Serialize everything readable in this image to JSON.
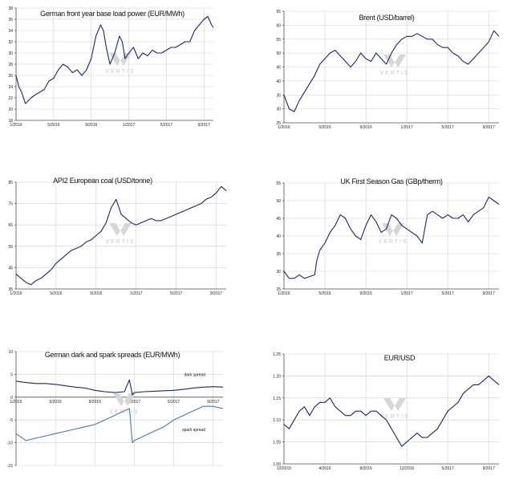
{
  "watermark": "VERTIS",
  "chart_data": [
    {
      "id": "c1",
      "type": "line",
      "title": "German front year base load power (EUR/MWh)",
      "ylim": [
        18,
        38
      ],
      "yticks": [
        18,
        20,
        22,
        24,
        26,
        28,
        30,
        32,
        34,
        36,
        38
      ],
      "xlim": [
        0,
        21
      ],
      "xticks": [
        {
          "x": 0,
          "label": "1/2016"
        },
        {
          "x": 4,
          "label": "5/2016"
        },
        {
          "x": 8,
          "label": "9/2016"
        },
        {
          "x": 12,
          "label": "1/2017"
        },
        {
          "x": 16,
          "label": "5/2017"
        },
        {
          "x": 20,
          "label": "9/2017"
        }
      ],
      "grid": true,
      "color": "#1b2a5c",
      "series": [
        {
          "x": [
            0,
            0.3,
            0.6,
            1,
            1.3,
            1.6,
            2,
            2.5,
            3,
            3.5,
            4,
            4.5,
            5,
            5.5,
            6,
            6.5,
            7,
            7.5,
            8,
            8.5,
            9,
            9.3,
            9.6,
            10,
            10.5,
            11,
            11.3,
            11.6,
            12,
            12.5,
            13,
            13.5,
            14,
            14.5,
            15,
            15.5,
            16,
            16.5,
            17,
            17.5,
            18,
            18.5,
            19,
            19.5,
            20,
            20.4,
            20.8,
            21
          ],
          "y": [
            26,
            24,
            23,
            21,
            21.5,
            22,
            22.5,
            23,
            23.5,
            25,
            25.5,
            27,
            28,
            27.5,
            26.5,
            27,
            26,
            27,
            29,
            33,
            35,
            34,
            31,
            28,
            30,
            33,
            32,
            29,
            30,
            31,
            29,
            30,
            29.5,
            30.5,
            30,
            30,
            30.5,
            31,
            31,
            31.5,
            32,
            32,
            34,
            35,
            36,
            36.5,
            35,
            34.5
          ]
        }
      ]
    },
    {
      "id": "c2",
      "type": "line",
      "title": "Brent (USD/barrel)",
      "ylim": [
        25,
        65
      ],
      "yticks": [
        25,
        30,
        35,
        40,
        45,
        50,
        55,
        60,
        65
      ],
      "xlim": [
        0,
        21
      ],
      "xticks": [
        {
          "x": 0,
          "label": "1/2016"
        },
        {
          "x": 4,
          "label": "5/2016"
        },
        {
          "x": 8,
          "label": "9/2016"
        },
        {
          "x": 12,
          "label": "1/2017"
        },
        {
          "x": 16,
          "label": "5/2017"
        },
        {
          "x": 20,
          "label": "9/2017"
        }
      ],
      "grid": true,
      "color": "#1b2a5c",
      "series": [
        {
          "x": [
            0,
            0.5,
            1,
            1.5,
            2,
            2.5,
            3,
            3.5,
            4,
            4.5,
            5,
            5.5,
            6,
            6.5,
            7,
            7.5,
            8,
            8.5,
            9,
            9.5,
            10,
            10.5,
            11,
            11.5,
            12,
            12.5,
            13,
            13.5,
            14,
            14.5,
            15,
            15.5,
            16,
            16.5,
            17,
            17.5,
            18,
            18.5,
            19,
            19.5,
            20,
            20.5,
            21
          ],
          "y": [
            35,
            30,
            29,
            33,
            36,
            39,
            42,
            46,
            48,
            50,
            51,
            49,
            47,
            45,
            47,
            50,
            48,
            47,
            50,
            48,
            46,
            50,
            53,
            55,
            56,
            56,
            57,
            56,
            55,
            55,
            53,
            52,
            52,
            50,
            49,
            47,
            46,
            48,
            50,
            52,
            54,
            58,
            56
          ]
        }
      ]
    },
    {
      "id": "c3",
      "type": "line",
      "title": "API2 European coal (USD/tonne)",
      "ylim": [
        35,
        85
      ],
      "yticks": [
        35,
        45,
        55,
        65,
        75,
        85
      ],
      "xlim": [
        0,
        21
      ],
      "xticks": [
        {
          "x": 0,
          "label": "1/2016"
        },
        {
          "x": 4,
          "label": "5/2016"
        },
        {
          "x": 8,
          "label": "9/2016"
        },
        {
          "x": 12,
          "label": "1/2017"
        },
        {
          "x": 16,
          "label": "5/2017"
        },
        {
          "x": 20,
          "label": "9/2017"
        }
      ],
      "grid": true,
      "color": "#1b2a5c",
      "series": [
        {
          "x": [
            0,
            0.5,
            1,
            1.5,
            2,
            2.5,
            3,
            3.5,
            4,
            4.5,
            5,
            5.5,
            6,
            6.5,
            7,
            7.5,
            8,
            8.5,
            9,
            9.5,
            10,
            10.5,
            11,
            11.5,
            12,
            12.5,
            13,
            13.5,
            14,
            14.5,
            15,
            15.5,
            16,
            16.5,
            17,
            17.5,
            18,
            18.5,
            19,
            19.5,
            20,
            20.5,
            21
          ],
          "y": [
            42,
            40,
            38,
            37,
            39,
            40,
            42,
            44,
            47,
            49,
            51,
            53,
            54,
            55,
            57,
            58,
            60,
            62,
            66,
            73,
            77,
            70,
            68,
            66,
            65,
            66,
            67,
            68,
            67,
            67,
            68,
            69,
            70,
            71,
            72,
            73,
            74,
            75,
            77,
            78,
            80,
            83,
            81
          ]
        }
      ]
    },
    {
      "id": "c4",
      "type": "line",
      "title": "UK First Season Gas (GBp/therm)",
      "ylim": [
        25,
        55
      ],
      "yticks": [
        25,
        30,
        35,
        40,
        45,
        50,
        55
      ],
      "xlim": [
        0,
        21
      ],
      "xticks": [
        {
          "x": 0,
          "label": "1/2016"
        },
        {
          "x": 4,
          "label": "5/2016"
        },
        {
          "x": 8,
          "label": "9/2016"
        },
        {
          "x": 12,
          "label": "1/2017"
        },
        {
          "x": 16,
          "label": "5/2017"
        },
        {
          "x": 20,
          "label": "9/2017"
        }
      ],
      "grid": true,
      "color": "#1b2a5c",
      "series": [
        {
          "x": [
            0,
            0.5,
            1,
            1.5,
            2,
            2.5,
            3,
            3.2,
            3.5,
            4,
            4.5,
            5,
            5.5,
            6,
            6.5,
            7,
            7.5,
            8,
            8.5,
            9,
            9.5,
            10,
            10.5,
            11,
            11.5,
            12,
            12.5,
            13,
            13.5,
            14,
            14.5,
            15,
            15.5,
            16,
            16.5,
            17,
            17.5,
            18,
            18.5,
            19,
            19.5,
            20,
            20.5,
            21
          ],
          "y": [
            30,
            28,
            28,
            29,
            28,
            28.5,
            29,
            33,
            36,
            38,
            41,
            43,
            46,
            45,
            42,
            40,
            39,
            43,
            46,
            44,
            41,
            42,
            46,
            45,
            43,
            42,
            41,
            40,
            38,
            46,
            47,
            46,
            45,
            46,
            45,
            45,
            46,
            44,
            46,
            47,
            48,
            51,
            50,
            49
          ]
        }
      ]
    },
    {
      "id": "c5",
      "type": "line",
      "title": "German dark and spark spreads (EUR/MWh)",
      "ylim": [
        -15,
        10
      ],
      "yticks": [
        -15,
        -10,
        -5,
        0,
        5,
        10
      ],
      "xlim": [
        0,
        21
      ],
      "xticks": [
        {
          "x": 0,
          "label": "1/2016"
        },
        {
          "x": 4,
          "label": "5/2016"
        },
        {
          "x": 8,
          "label": "9/2016"
        },
        {
          "x": 12,
          "label": "1/2017"
        },
        {
          "x": 16,
          "label": "5/2017"
        },
        {
          "x": 20,
          "label": "9/2017"
        }
      ],
      "xaxis_at": 0,
      "grid": true,
      "series": [
        {
          "name": "dark spread",
          "color": "#1b2a5c",
          "x": [
            0,
            1,
            2,
            3,
            4,
            5,
            6,
            7,
            8,
            9,
            10,
            11,
            11.5,
            11.8,
            12,
            13,
            14,
            15,
            16,
            17,
            18,
            19,
            20,
            21
          ],
          "y": [
            3.5,
            3.2,
            3,
            3,
            2.8,
            2.5,
            2.2,
            2,
            1.5,
            1.2,
            1,
            1.2,
            3.8,
            0.5,
            1,
            1.2,
            1.3,
            1.4,
            1.5,
            1.7,
            2,
            2.2,
            2.3,
            2.2
          ]
        },
        {
          "name": "spark spread",
          "color": "#4a79a8",
          "x": [
            0,
            1,
            2,
            3,
            4,
            5,
            6,
            7,
            8,
            9,
            10,
            11,
            11.5,
            11.8,
            12,
            13,
            14,
            15,
            16,
            17,
            18,
            19,
            20,
            21
          ],
          "y": [
            -8,
            -9.5,
            -9,
            -8.5,
            -8,
            -7.5,
            -7,
            -6.5,
            -6,
            -5,
            -4,
            -3,
            -2.5,
            -10,
            -9.5,
            -8.5,
            -7.5,
            -6.5,
            -5,
            -4,
            -3,
            -2,
            -2,
            -2.5
          ]
        }
      ]
    },
    {
      "id": "c6",
      "type": "line",
      "title": "EUR/USD",
      "ylim": [
        1.0,
        1.25
      ],
      "yticks": [
        1.0,
        1.05,
        1.1,
        1.15,
        1.2,
        1.25
      ],
      "ytick_labels": [
        "1.00",
        "1.05",
        "1.10",
        "1.15",
        "1.20",
        "1.25"
      ],
      "xlim": [
        0,
        21
      ],
      "xticks": [
        {
          "x": 0,
          "label": "12/2015"
        },
        {
          "x": 4,
          "label": "4/2016"
        },
        {
          "x": 8,
          "label": "8/2016"
        },
        {
          "x": 12,
          "label": "12/2016"
        },
        {
          "x": 16,
          "label": "5/2017"
        },
        {
          "x": 20,
          "label": "9/2017"
        }
      ],
      "grid": true,
      "color": "#1b2a5c",
      "series": [
        {
          "x": [
            0,
            0.5,
            1,
            1.5,
            2,
            2.5,
            3,
            3.5,
            4,
            4.5,
            5,
            5.5,
            6,
            6.5,
            7,
            7.5,
            8,
            8.5,
            9,
            9.5,
            10,
            10.5,
            11,
            11.5,
            12,
            12.5,
            13,
            13.5,
            14,
            14.5,
            15,
            15.5,
            16,
            16.5,
            17,
            17.5,
            18,
            18.5,
            19,
            19.5,
            20,
            20.5,
            21
          ],
          "y": [
            1.09,
            1.08,
            1.1,
            1.12,
            1.13,
            1.11,
            1.13,
            1.14,
            1.14,
            1.15,
            1.13,
            1.12,
            1.11,
            1.11,
            1.12,
            1.12,
            1.11,
            1.12,
            1.12,
            1.11,
            1.1,
            1.08,
            1.06,
            1.04,
            1.05,
            1.06,
            1.07,
            1.06,
            1.06,
            1.07,
            1.08,
            1.1,
            1.12,
            1.13,
            1.14,
            1.16,
            1.17,
            1.18,
            1.18,
            1.19,
            1.2,
            1.19,
            1.18
          ]
        }
      ]
    }
  ]
}
